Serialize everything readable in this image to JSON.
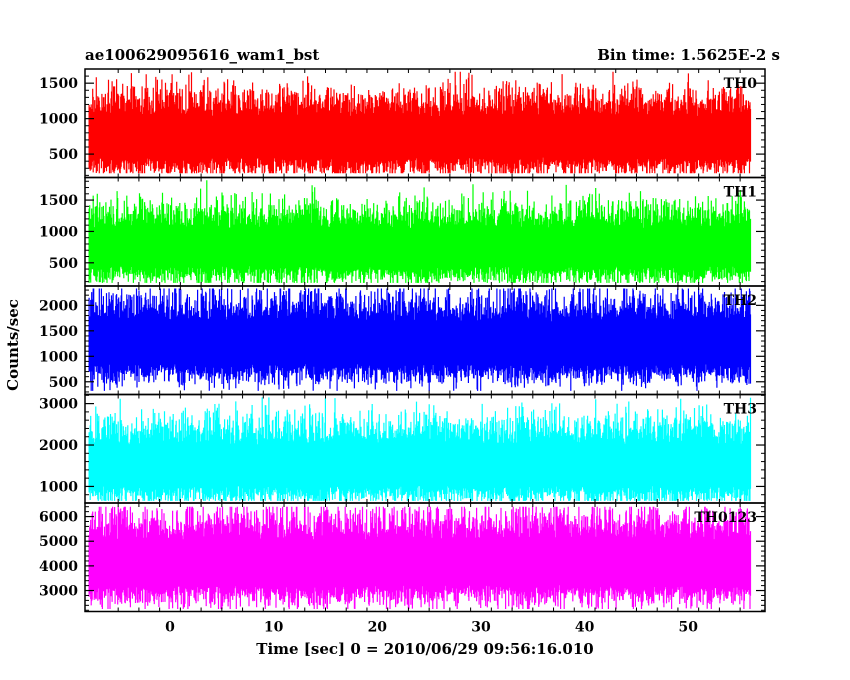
{
  "header": {
    "title": "ae100629095616_wam1_bst",
    "bin_time": "Bin time: 1.5625E-2 s"
  },
  "chart_data": {
    "type": "line",
    "ylabel": "Counts/sec",
    "xlabel": "Time [sec] 0 = 2010/06/29 09:56:16.010",
    "xlim": [
      -8.2,
      57.4
    ],
    "x_ticks": [
      0,
      10,
      20,
      30,
      40,
      50
    ],
    "x_range": [
      -7.8,
      56.0
    ],
    "panels": [
      {
        "name": "TH0",
        "color": "#ff0000",
        "ylim": [
          170,
          1700
        ],
        "y_ticks": [
          500,
          1000,
          1500
        ],
        "band": [
          230,
          1660
        ],
        "mean": 760,
        "spread": 220
      },
      {
        "name": "TH1",
        "color": "#00ff00",
        "ylim": [
          130,
          1860
        ],
        "y_ticks": [
          500,
          1000,
          1500
        ],
        "band": [
          180,
          1820
        ],
        "mean": 770,
        "spread": 230
      },
      {
        "name": "TH2",
        "color": "#0000ff",
        "ylim": [
          250,
          2380
        ],
        "y_ticks": [
          500,
          1000,
          1500,
          2000
        ],
        "band": [
          320,
          2330
        ],
        "mean": 1300,
        "spread": 320
      },
      {
        "name": "TH3",
        "color": "#00ffff",
        "ylim": [
          600,
          3220
        ],
        "y_ticks": [
          1000,
          2000,
          3000
        ],
        "band": [
          650,
          3150
        ],
        "mean": 1550,
        "spread": 380
      },
      {
        "name": "TH0123",
        "color": "#ff00ff",
        "ylim": [
          2150,
          6550
        ],
        "y_ticks": [
          3000,
          4000,
          5000,
          6000
        ],
        "band": [
          2250,
          6400
        ],
        "mean": 4200,
        "spread": 700
      }
    ]
  }
}
